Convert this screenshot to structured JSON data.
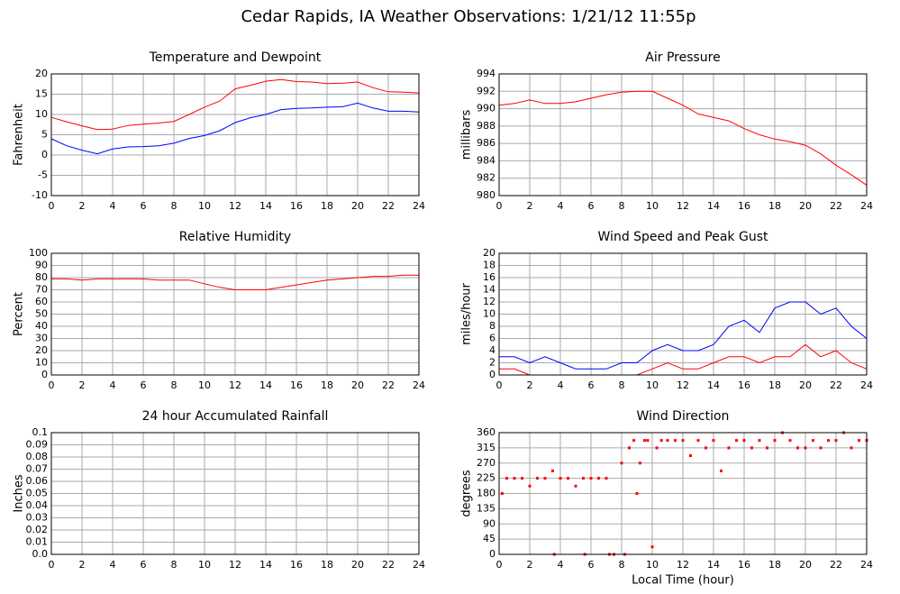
{
  "title": "Cedar Rapids, IA Weather Observations: 1/21/12 11:55p",
  "chart_data": [
    {
      "type": "line",
      "title": "Temperature and Dewpoint",
      "ylabel": "Fahrenheit",
      "x": [
        0,
        1,
        2,
        3,
        4,
        5,
        6,
        7,
        8,
        9,
        10,
        11,
        12,
        13,
        14,
        15,
        16,
        17,
        18,
        19,
        20,
        21,
        22,
        23,
        24
      ],
      "series": [
        {
          "color": "#ff0000",
          "values": [
            9.3,
            8.2,
            7.2,
            6.3,
            6.4,
            7.3,
            7.6,
            7.9,
            8.3,
            10.0,
            11.8,
            13.3,
            16.3,
            17.2,
            18.2,
            18.6,
            18.1,
            18.0,
            17.6,
            17.7,
            18.0,
            16.6,
            15.6,
            15.5,
            15.3
          ]
        },
        {
          "color": "#0000ff",
          "values": [
            4,
            2.3,
            1.2,
            0.3,
            1.5,
            2,
            2.1,
            2.3,
            2.9,
            4.1,
            4.8,
            6.0,
            8.0,
            9.2,
            10.0,
            11.2,
            11.5,
            11.6,
            11.8,
            11.9,
            12.8,
            11.6,
            10.8,
            10.8,
            10.6
          ]
        }
      ],
      "xlim": [
        0,
        24
      ],
      "xticks": [
        0,
        2,
        4,
        6,
        8,
        10,
        12,
        14,
        16,
        18,
        20,
        22,
        24
      ],
      "ylim": [
        -10,
        20
      ],
      "yticks": [
        -10,
        -5,
        0,
        5,
        10,
        15,
        20
      ],
      "grid": true
    },
    {
      "type": "line",
      "title": "Air Pressure",
      "ylabel": "millibars",
      "x": [
        0,
        1,
        2,
        3,
        4,
        5,
        6,
        7,
        8,
        9,
        10,
        11,
        12,
        13,
        14,
        15,
        16,
        17,
        18,
        19,
        20,
        21,
        22,
        23,
        24
      ],
      "series": [
        {
          "color": "#ff0000",
          "values": [
            990.4,
            990.6,
            991.0,
            990.6,
            990.6,
            990.8,
            991.2,
            991.6,
            991.9,
            992.0,
            992.0,
            991.2,
            990.4,
            989.4,
            989.0,
            988.6,
            987.7,
            987.0,
            986.5,
            986.2,
            985.8,
            984.8,
            983.5,
            982.4,
            981.2
          ]
        }
      ],
      "xlim": [
        0,
        24
      ],
      "xticks": [
        0,
        2,
        4,
        6,
        8,
        10,
        12,
        14,
        16,
        18,
        20,
        22,
        24
      ],
      "ylim": [
        980,
        994
      ],
      "yticks": [
        980,
        982,
        984,
        986,
        988,
        990,
        992,
        994
      ],
      "grid": true
    },
    {
      "type": "line",
      "title": "Relative Humidity",
      "ylabel": "Percent",
      "x": [
        0,
        1,
        2,
        3,
        4,
        5,
        6,
        7,
        8,
        9,
        10,
        11,
        12,
        13,
        14,
        15,
        16,
        17,
        18,
        19,
        20,
        21,
        22,
        23,
        24
      ],
      "series": [
        {
          "color": "#ff0000",
          "values": [
            79,
            79,
            78,
            79,
            79,
            79,
            79,
            78,
            78,
            78,
            75,
            72,
            70,
            70,
            70,
            72,
            74,
            76,
            78,
            79,
            80,
            81,
            81,
            82,
            82
          ]
        }
      ],
      "xlim": [
        0,
        24
      ],
      "xticks": [
        0,
        2,
        4,
        6,
        8,
        10,
        12,
        14,
        16,
        18,
        20,
        22,
        24
      ],
      "ylim": [
        0,
        100
      ],
      "yticks": [
        0,
        10,
        20,
        30,
        40,
        50,
        60,
        70,
        80,
        90,
        100
      ],
      "grid": true
    },
    {
      "type": "line",
      "title": "Wind Speed and Peak Gust",
      "ylabel": "miles/hour",
      "x": [
        0,
        1,
        2,
        3,
        4,
        5,
        6,
        7,
        8,
        9,
        10,
        11,
        12,
        13,
        14,
        15,
        16,
        17,
        18,
        19,
        20,
        21,
        22,
        23,
        24
      ],
      "series": [
        {
          "color": "#0000ff",
          "values": [
            3,
            3,
            2,
            3,
            2,
            1,
            1,
            1,
            2,
            2,
            4,
            5,
            4,
            4,
            5,
            8,
            9,
            7,
            11,
            12,
            12,
            10,
            11,
            8,
            6
          ]
        },
        {
          "color": "#ff0000",
          "values": [
            1,
            1,
            0,
            0,
            0,
            0,
            0,
            0,
            0,
            0,
            1,
            2,
            1,
            1,
            2,
            3,
            3,
            2,
            3,
            3,
            5,
            3,
            4,
            2,
            1
          ]
        }
      ],
      "xlim": [
        0,
        24
      ],
      "xticks": [
        0,
        2,
        4,
        6,
        8,
        10,
        12,
        14,
        16,
        18,
        20,
        22,
        24
      ],
      "ylim": [
        0,
        20
      ],
      "yticks": [
        0,
        2,
        4,
        6,
        8,
        10,
        12,
        14,
        16,
        18,
        20
      ],
      "grid": true
    },
    {
      "type": "line",
      "title": "24 hour Accumulated Rainfall",
      "ylabel": "Inches",
      "x": [
        0,
        24
      ],
      "series": [
        {
          "color": "#ff4444",
          "values": [
            0,
            0
          ]
        }
      ],
      "xlim": [
        0,
        24
      ],
      "xticks": [
        0,
        2,
        4,
        6,
        8,
        10,
        12,
        14,
        16,
        18,
        20,
        22,
        24
      ],
      "ylim": [
        0,
        0.1
      ],
      "yticks": [
        {
          "value": 0,
          "label": "0.0"
        },
        0.01,
        0.02,
        0.03,
        0.04,
        0.05,
        0.06,
        0.07,
        0.08,
        0.09,
        0.1
      ],
      "grid": true
    },
    {
      "type": "scatter",
      "title": "Wind Direction",
      "ylabel": "degrees",
      "xlabel": "Local Time (hour)",
      "x": [
        0.2,
        0.5,
        1,
        1.5,
        2,
        2.5,
        3,
        3.5,
        3.6,
        4,
        4.5,
        5,
        5.5,
        5.6,
        6,
        6.5,
        7,
        7.2,
        7.5,
        8,
        8.2,
        8.5,
        8.8,
        9,
        9.2,
        9.5,
        9.7,
        10,
        10.3,
        10.6,
        11,
        11.5,
        12,
        12.5,
        13,
        13.5,
        14,
        14.5,
        15,
        15.5,
        16,
        16.5,
        17,
        17.5,
        18,
        18.5,
        19,
        19.5,
        20,
        20.5,
        21,
        21.5,
        22,
        22.5,
        23,
        23.5,
        24
      ],
      "series": [
        {
          "color": "#ff0000",
          "values": [
            180,
            225,
            225,
            225,
            202,
            225,
            225,
            247,
            0,
            225,
            225,
            202,
            225,
            0,
            225,
            225,
            225,
            0,
            0,
            270,
            0,
            315,
            337,
            180,
            270,
            337,
            337,
            22,
            315,
            337,
            337,
            337,
            337,
            292,
            337,
            315,
            337,
            247,
            315,
            337,
            337,
            315,
            337,
            315,
            337,
            360,
            337,
            315,
            315,
            337,
            315,
            337,
            337,
            360,
            315,
            337,
            337
          ]
        }
      ],
      "xlim": [
        0,
        24
      ],
      "xticks": [
        0,
        2,
        4,
        6,
        8,
        10,
        12,
        14,
        16,
        18,
        20,
        22,
        24
      ],
      "ylim": [
        0,
        360
      ],
      "yticks": [
        0,
        45,
        90,
        135,
        180,
        225,
        270,
        315,
        360
      ],
      "grid": true
    }
  ]
}
